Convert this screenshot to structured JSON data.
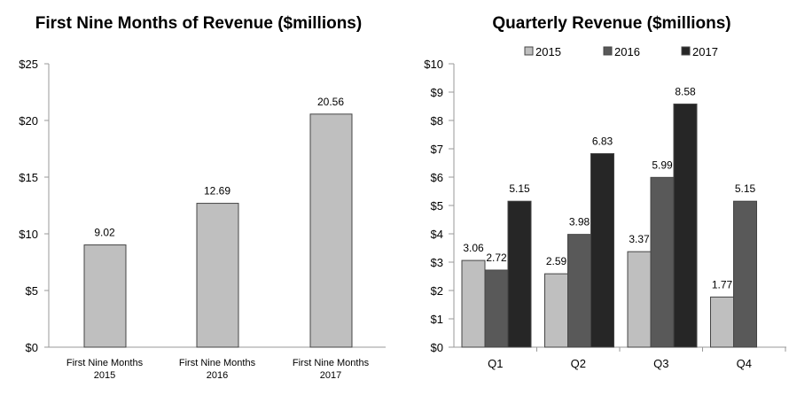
{
  "chart_data": [
    {
      "type": "bar",
      "title": "First Nine Months of Revenue ($millions)",
      "categories": [
        [
          "First Nine Months",
          "2015"
        ],
        [
          "First Nine Months",
          "2016"
        ],
        [
          "First Nine Months",
          "2017"
        ]
      ],
      "values": [
        9.02,
        12.69,
        20.56
      ],
      "value_labels": [
        "9.02",
        "12.69",
        "20.56"
      ],
      "ylim": [
        0,
        25
      ],
      "yticks": [
        "$0",
        "$5",
        "$10",
        "$15",
        "$20",
        "$25"
      ],
      "color": "#bfbfbf",
      "grid": false
    },
    {
      "type": "bar",
      "title": "Quarterly Revenue ($millions)",
      "categories": [
        "Q1",
        "Q2",
        "Q3",
        "Q4"
      ],
      "series": [
        {
          "name": "2015",
          "color": "#bfbfbf",
          "values": [
            3.06,
            2.59,
            3.37,
            1.77
          ],
          "labels": [
            "3.06",
            "2.59",
            "3.37",
            "1.77"
          ]
        },
        {
          "name": "2016",
          "color": "#595959",
          "values": [
            2.72,
            3.98,
            5.99,
            5.15
          ],
          "labels": [
            "2.72",
            "3.98",
            "5.99",
            "5.15"
          ]
        },
        {
          "name": "2017",
          "color": "#262626",
          "values": [
            5.15,
            6.83,
            8.58,
            null
          ],
          "labels": [
            "5.15",
            "6.83",
            "8.58",
            null
          ]
        }
      ],
      "ylim": [
        0,
        10
      ],
      "yticks": [
        "$0",
        "$1",
        "$2",
        "$3",
        "$4",
        "$5",
        "$6",
        "$7",
        "$8",
        "$9",
        "$10"
      ],
      "legend": "top",
      "grid": false
    }
  ]
}
